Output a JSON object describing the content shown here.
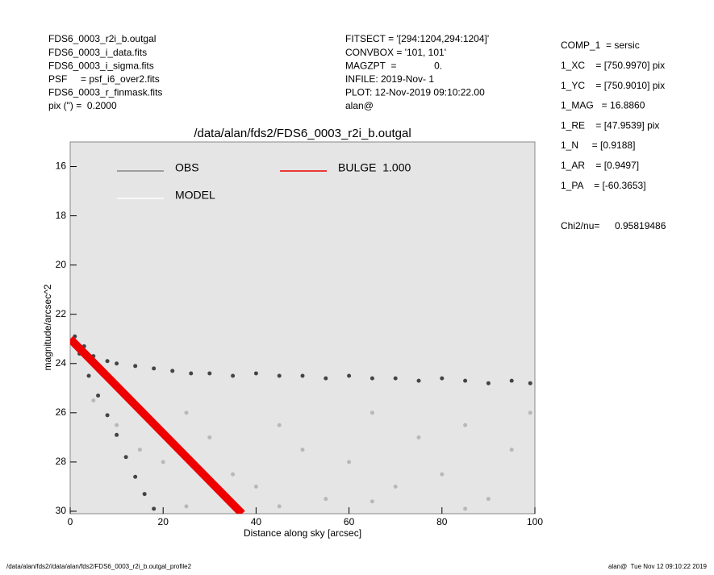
{
  "header": {
    "left": [
      "FDS6_0003_r2i_b.outgal",
      "FDS6_0003_i_data.fits",
      "FDS6_0003_i_sigma.fits",
      "PSF     = psf_i6_over2.fits",
      "FDS6_0003_r_finmask.fits",
      "pix (\") =  0.2000"
    ],
    "middle": [
      "FITSECT = '[294:1204,294:1204]'",
      "CONVBOX = '101, 101'",
      "MAGZPT  =              0.",
      "INFILE: 2019-Nov- 1",
      "PLOT: 12-Nov-2019 09:10:22.00",
      "alan@"
    ],
    "right": [
      "COMP_1  = sersic",
      "1_XC    = [750.9970] pix",
      "1_YC    = [750.9010] pix",
      "1_MAG   = 16.8860",
      "1_RE    = [47.9539] pix",
      "1_N     = [0.9188]",
      "1_AR    = [0.9497]",
      "1_PA    = [-60.3653]"
    ],
    "chi_label": "Chi2/nu=",
    "chi_value": "0.95819486"
  },
  "footer": {
    "left": "/data/alan/fds2//data/alan/fds2/FDS6_0003_r2i_b.outgal_profile2",
    "right": "alan@  Tue Nov 12 09:10:22 2019"
  },
  "chart_data": {
    "type": "scatter",
    "title": "/data/alan/fds2/FDS6_0003_r2i_b.outgal",
    "x_label": "Distance along sky [arcsec]",
    "y_label": "magnitude/arcsec^2",
    "xlim": [
      0,
      100
    ],
    "xticks": [
      0,
      20,
      40,
      60,
      80,
      100
    ],
    "ylim": [
      30.1,
      15
    ],
    "yticks": [
      16,
      18,
      20,
      22,
      24,
      26,
      28,
      30
    ],
    "background": "#e5e5e5",
    "series": [
      {
        "name": "OBS",
        "color": "#444444",
        "legend_color": "#888888",
        "x": [
          1,
          3,
          5,
          8,
          10,
          14,
          18,
          22,
          26,
          30,
          35,
          40,
          45,
          50,
          55,
          60,
          65,
          70,
          75,
          80,
          85,
          90,
          95,
          99,
          2,
          4,
          6,
          8,
          10,
          12,
          14,
          16,
          18
        ],
        "values": [
          22.9,
          23.3,
          23.7,
          23.9,
          24.0,
          24.1,
          24.2,
          24.3,
          24.4,
          24.4,
          24.5,
          24.4,
          24.5,
          24.5,
          24.6,
          24.5,
          24.6,
          24.6,
          24.7,
          24.6,
          24.7,
          24.8,
          24.7,
          24.8,
          23.6,
          24.5,
          25.3,
          26.1,
          26.9,
          27.8,
          28.6,
          29.3,
          29.9
        ]
      },
      {
        "name": "MODEL",
        "color": "#b8b8b8",
        "legend_color": "#ffffff",
        "x": [
          5,
          10,
          15,
          20,
          25,
          30,
          35,
          40,
          45,
          50,
          55,
          60,
          65,
          70,
          75,
          80,
          85,
          90,
          95,
          99,
          25,
          45,
          65,
          85
        ],
        "values": [
          25.5,
          26.5,
          27.5,
          28,
          26,
          27,
          28.5,
          29,
          26.5,
          27.5,
          29.5,
          28,
          26,
          29,
          27,
          28.5,
          26.5,
          29.5,
          27.5,
          26,
          29.8,
          29.8,
          29.6,
          29.9
        ]
      },
      {
        "name": "BULGE  1.000",
        "color": "#ee0000",
        "legend_color": "#ee0000",
        "type": "line",
        "x": [
          0,
          37
        ],
        "values": [
          23.0,
          30.1
        ]
      }
    ]
  }
}
